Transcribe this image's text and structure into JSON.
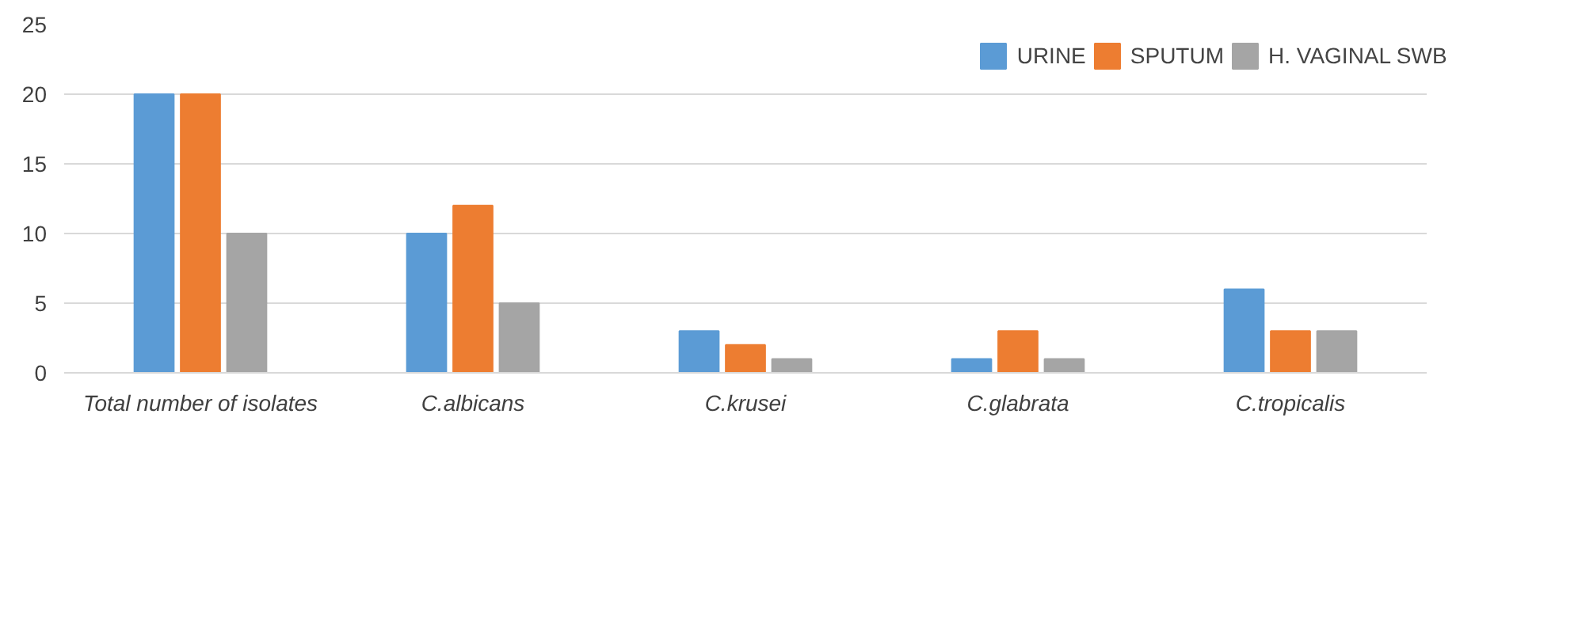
{
  "chart_data": {
    "type": "bar",
    "categories": [
      "Total number of isolates",
      "C.albicans",
      "C.krusei",
      "C.glabrata",
      "C.tropicalis"
    ],
    "series": [
      {
        "name": "URINE",
        "color": "#5b9bd5",
        "values": [
          20,
          10,
          3,
          1,
          6
        ]
      },
      {
        "name": "SPUTUM",
        "color": "#ed7d31",
        "values": [
          20,
          12,
          2,
          3,
          3
        ]
      },
      {
        "name": "H. VAGINAL SWB",
        "color": "#a5a5a5",
        "values": [
          10,
          5,
          1,
          1,
          3
        ]
      }
    ],
    "ylim": [
      0,
      25
    ],
    "yticks": [
      0,
      5,
      10,
      15,
      20,
      25
    ],
    "grid": "y",
    "legend": "top right"
  }
}
